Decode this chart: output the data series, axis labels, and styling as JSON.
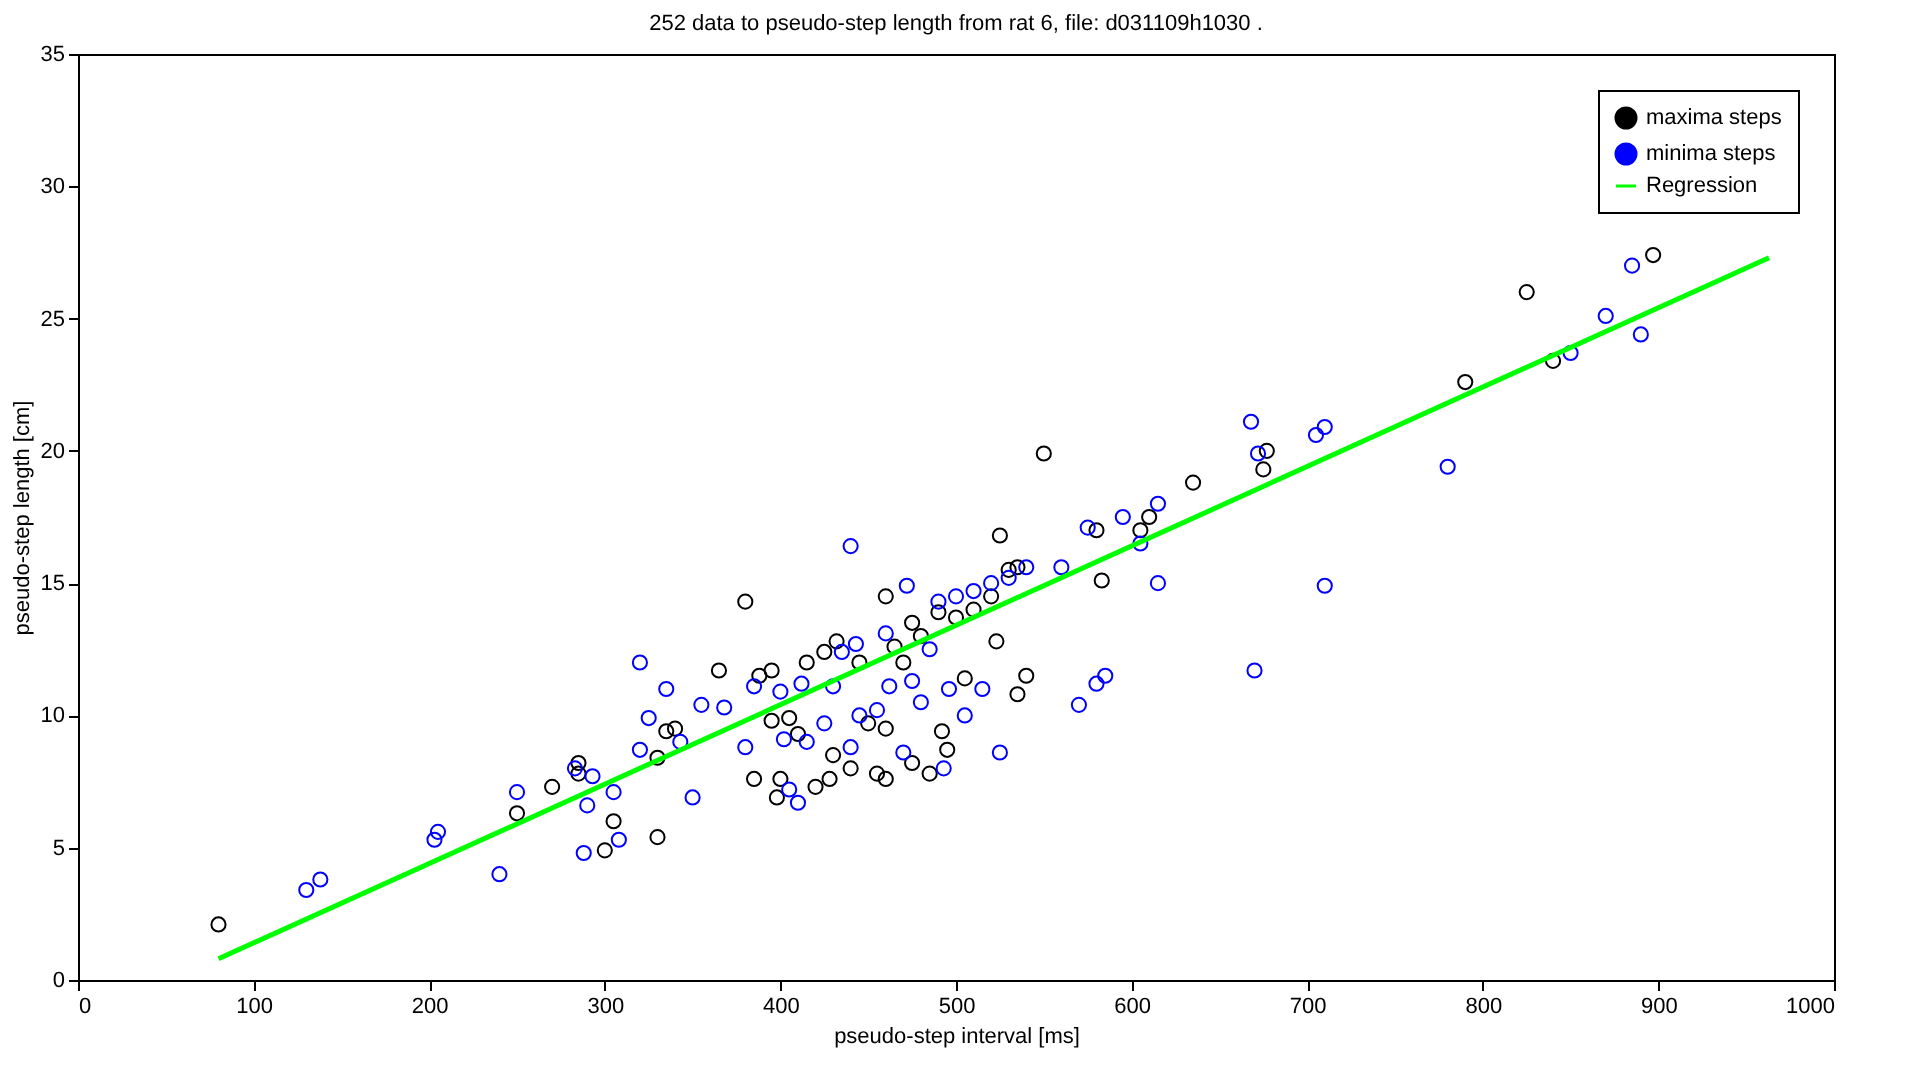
{
  "chart_data": {
    "type": "scatter",
    "title": "252 data to pseudo-step length from rat 6, file: d031109h1030 .",
    "xlabel": "pseudo-step interval [ms]",
    "ylabel": "pseudo-step length [cm]",
    "xlim": [
      0,
      1000
    ],
    "xticks": [
      0,
      100,
      200,
      300,
      400,
      500,
      600,
      700,
      800,
      900,
      1000
    ],
    "ylim": [
      0,
      35
    ],
    "yticks": [
      0,
      5,
      10,
      15,
      20,
      25,
      30,
      35
    ],
    "grid": false,
    "legend": "top right",
    "series": [
      {
        "name": "maxima steps",
        "color": "#000000",
        "marker": "circle",
        "x": [
          80,
          250,
          270,
          285,
          285,
          300,
          305,
          330,
          330,
          335,
          340,
          365,
          380,
          388,
          385,
          395,
          395,
          398,
          400,
          405,
          410,
          415,
          420,
          425,
          428,
          430,
          432,
          440,
          445,
          450,
          455,
          460,
          460,
          460,
          465,
          470,
          475,
          475,
          480,
          485,
          490,
          492,
          495,
          500,
          505,
          510,
          520,
          523,
          525,
          530,
          535,
          535,
          540,
          550,
          580,
          583,
          605,
          610,
          635,
          675,
          677,
          790,
          825,
          840,
          897
        ],
        "values": [
          2.1,
          6.3,
          7.3,
          7.8,
          8.2,
          4.9,
          6.0,
          5.4,
          8.4,
          9.4,
          9.5,
          11.7,
          14.3,
          11.5,
          7.6,
          11.7,
          9.8,
          6.9,
          7.6,
          9.9,
          9.3,
          12.0,
          7.3,
          12.4,
          7.6,
          8.5,
          12.8,
          8.0,
          12.0,
          9.7,
          7.8,
          14.5,
          7.6,
          9.5,
          12.6,
          12.0,
          13.5,
          8.2,
          13.0,
          7.8,
          13.9,
          9.4,
          8.7,
          13.7,
          11.4,
          14.0,
          14.5,
          12.8,
          16.8,
          15.5,
          10.8,
          15.6,
          11.5,
          19.9,
          17.0,
          15.1,
          17.0,
          17.5,
          18.8,
          19.3,
          20.0,
          22.6,
          26.0,
          23.4,
          27.4
        ]
      },
      {
        "name": "minima steps",
        "color": "#0000ff",
        "marker": "circle",
        "x": [
          130,
          138,
          203,
          205,
          240,
          250,
          283,
          288,
          290,
          293,
          305,
          308,
          320,
          320,
          325,
          335,
          343,
          350,
          355,
          368,
          380,
          385,
          400,
          402,
          405,
          410,
          412,
          415,
          425,
          430,
          435,
          440,
          440,
          443,
          445,
          455,
          460,
          462,
          470,
          472,
          475,
          480,
          485,
          490,
          493,
          496,
          500,
          505,
          510,
          515,
          520,
          525,
          530,
          540,
          560,
          570,
          575,
          580,
          585,
          595,
          605,
          615,
          615,
          668,
          670,
          672,
          705,
          710,
          710,
          780,
          850,
          870,
          885,
          890
        ],
        "values": [
          3.4,
          3.8,
          5.3,
          5.6,
          4.0,
          7.1,
          8.0,
          4.8,
          6.6,
          7.7,
          7.1,
          5.3,
          8.7,
          12.0,
          9.9,
          11.0,
          9.0,
          6.9,
          10.4,
          10.3,
          8.8,
          11.1,
          10.9,
          9.1,
          7.2,
          6.7,
          11.2,
          9.0,
          9.7,
          11.1,
          12.4,
          16.4,
          8.8,
          12.7,
          10.0,
          10.2,
          13.1,
          11.1,
          8.6,
          14.9,
          11.3,
          10.5,
          12.5,
          14.3,
          8.0,
          11.0,
          14.5,
          10.0,
          14.7,
          11.0,
          15.0,
          8.6,
          15.2,
          15.6,
          15.6,
          10.4,
          17.1,
          11.2,
          11.5,
          17.5,
          16.5,
          18.0,
          15.0,
          21.1,
          11.7,
          19.9,
          20.6,
          20.9,
          14.9,
          19.4,
          23.7,
          25.1,
          27.0,
          24.4
        ]
      },
      {
        "name": "Regression",
        "type": "line",
        "marker": "none",
        "color": "#00ff00",
        "x": [
          80,
          963
        ],
        "values": [
          0.8,
          27.3
        ]
      }
    ]
  }
}
